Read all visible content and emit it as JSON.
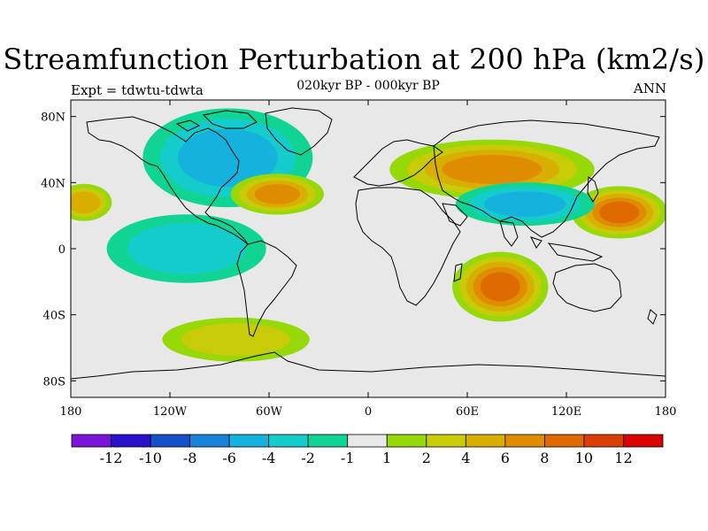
{
  "title": "Streamfunction Perturbation at 200 hPa (km2/s)",
  "left_label": "Expt = tdwtu-tdwta",
  "center_label": "020kyr BP - 000kyr BP",
  "right_label": "ANN",
  "chart_data": {
    "type": "heatmap",
    "projection": "cylindrical-equidistant",
    "x_range": [
      -180,
      180
    ],
    "y_range": [
      -90,
      90
    ],
    "x_ticks": [
      {
        "value": -180,
        "label": "180"
      },
      {
        "value": -120,
        "label": "120W"
      },
      {
        "value": -60,
        "label": "60W"
      },
      {
        "value": 0,
        "label": "0"
      },
      {
        "value": 60,
        "label": "60E"
      },
      {
        "value": 120,
        "label": "120E"
      },
      {
        "value": 180,
        "label": "180"
      }
    ],
    "y_ticks": [
      {
        "value": 80,
        "label": "80N"
      },
      {
        "value": 40,
        "label": "40N"
      },
      {
        "value": 0,
        "label": "0"
      },
      {
        "value": -40,
        "label": "40S"
      },
      {
        "value": -80,
        "label": "80S"
      }
    ],
    "colorbar": {
      "colors": [
        "#7a14d8",
        "#2a12cc",
        "#1650c8",
        "#1a82d8",
        "#14b2dc",
        "#14cccc",
        "#10d494",
        "#e8e8e8",
        "#96d808",
        "#c8cc08",
        "#d8ae00",
        "#df8c00",
        "#de6a00",
        "#dc3e08",
        "#d80404"
      ],
      "tick_labels": [
        "-12",
        "-10",
        "-8",
        "-6",
        "-4",
        "-2",
        "-1",
        "1",
        "2",
        "4",
        "6",
        "8",
        "10",
        "12"
      ]
    },
    "features": [
      {
        "lon": -80,
        "lat": 55,
        "rx": 30,
        "ry": 18,
        "level": -8,
        "name": "North America low"
      },
      {
        "lon": -85,
        "lat": 55,
        "rx": 55,
        "ry": 32,
        "level": -4,
        "name": "North America trough"
      },
      {
        "lon": -55,
        "lat": 33,
        "rx": 25,
        "ry": 11,
        "level": 6,
        "name": "Western Atlantic high"
      },
      {
        "lon": 75,
        "lat": 48,
        "rx": 55,
        "ry": 16,
        "level": 6,
        "name": "Eurasian ridge"
      },
      {
        "lon": 80,
        "lat": -23,
        "rx": 22,
        "ry": 16,
        "level": 8,
        "name": "Indian Ocean high"
      },
      {
        "lon": 152,
        "lat": 22,
        "rx": 22,
        "ry": 12,
        "level": 8,
        "name": "West Pacific high"
      },
      {
        "lon": 95,
        "lat": 27,
        "rx": 45,
        "ry": 14,
        "level": -4,
        "name": "Tibetan trough"
      },
      {
        "lon": -172,
        "lat": 28,
        "rx": 18,
        "ry": 12,
        "level": 4,
        "name": "Central Pacific high"
      },
      {
        "lon": -110,
        "lat": 0,
        "rx": 65,
        "ry": 28,
        "level": -2,
        "name": "Equatorial Pacific trough"
      },
      {
        "lon": -80,
        "lat": -55,
        "rx": 60,
        "ry": 18,
        "level": 2,
        "name": "Southern Ocean ridge"
      }
    ]
  }
}
